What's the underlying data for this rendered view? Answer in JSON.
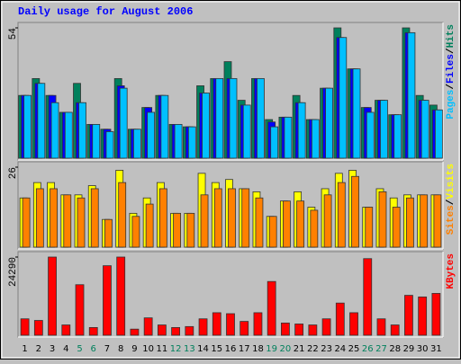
{
  "chart_data": [
    {
      "type": "bar",
      "title": "Daily usage for August 2006",
      "legend_separator": "/",
      "ylim": [
        0,
        54
      ],
      "yticks": [
        54
      ],
      "series": [
        {
          "name": "Hits",
          "color": "#00805c",
          "values": [
            26,
            33,
            26,
            19,
            31,
            14,
            12,
            33,
            12,
            21,
            26,
            14,
            13,
            30,
            33,
            40,
            24,
            33,
            16,
            17,
            26,
            16,
            29,
            54,
            37,
            21,
            24,
            18,
            54,
            26,
            22
          ]
        },
        {
          "name": "Files",
          "color": "#0000ff",
          "values": [
            26,
            31,
            26,
            19,
            23,
            14,
            12,
            30,
            12,
            21,
            26,
            14,
            13,
            27,
            33,
            33,
            22,
            33,
            15,
            17,
            23,
            16,
            29,
            50,
            37,
            21,
            24,
            18,
            52,
            24,
            20
          ]
        },
        {
          "name": "Pages",
          "color": "#00c0ff",
          "values": [
            26,
            31,
            23,
            19,
            23,
            14,
            11,
            29,
            12,
            19,
            26,
            14,
            13,
            27,
            33,
            33,
            22,
            33,
            13,
            17,
            23,
            16,
            29,
            50,
            37,
            19,
            24,
            18,
            52,
            24,
            20
          ]
        }
      ]
    },
    {
      "type": "bar",
      "legend_separator": "/",
      "ylim": [
        0,
        26
      ],
      "yticks": [
        26
      ],
      "series": [
        {
          "name": "Visits",
          "color": "#ffff00",
          "values": [
            16,
            21,
            21,
            17,
            17,
            20,
            9,
            25,
            11,
            16,
            21,
            11,
            11,
            24,
            21,
            22,
            19,
            18,
            10,
            15,
            18,
            13,
            19,
            24,
            25,
            13,
            19,
            16,
            17,
            17,
            17
          ]
        },
        {
          "name": "Sites",
          "color": "#ff8000",
          "values": [
            16,
            19,
            19,
            17,
            16,
            19,
            9,
            21,
            10,
            14,
            19,
            11,
            11,
            17,
            19,
            19,
            19,
            16,
            10,
            15,
            15,
            12,
            17,
            21,
            23,
            13,
            18,
            13,
            16,
            17,
            17
          ]
        }
      ]
    },
    {
      "type": "bar",
      "ylim": [
        0,
        24290
      ],
      "yticks": [
        24290
      ],
      "categories": [
        "1",
        "2",
        "3",
        "4",
        "5",
        "6",
        "7",
        "8",
        "9",
        "10",
        "11",
        "12",
        "13",
        "14",
        "15",
        "16",
        "17",
        "18",
        "19",
        "20",
        "21",
        "22",
        "23",
        "24",
        "25",
        "26",
        "27",
        "28",
        "29",
        "30",
        "31"
      ],
      "category_colors": [
        "#000000",
        "#000000",
        "#000000",
        "#000000",
        "#00805c",
        "#00805c",
        "#000000",
        "#000000",
        "#000000",
        "#000000",
        "#000000",
        "#00805c",
        "#00805c",
        "#000000",
        "#000000",
        "#000000",
        "#000000",
        "#000000",
        "#00805c",
        "#00805c",
        "#000000",
        "#000000",
        "#000000",
        "#000000",
        "#000000",
        "#00805c",
        "#00805c",
        "#000000",
        "#000000",
        "#000000",
        "#000000"
      ],
      "series": [
        {
          "name": "KBytes",
          "color": "#ff0000",
          "values": [
            5100,
            4600,
            24290,
            3200,
            15700,
            2400,
            21600,
            24290,
            1900,
            5400,
            3200,
            2400,
            2700,
            5100,
            7000,
            6700,
            4300,
            7000,
            16700,
            3800,
            3500,
            3200,
            5100,
            10000,
            7000,
            23800,
            5100,
            3200,
            12400,
            11900,
            13000
          ]
        }
      ]
    }
  ]
}
